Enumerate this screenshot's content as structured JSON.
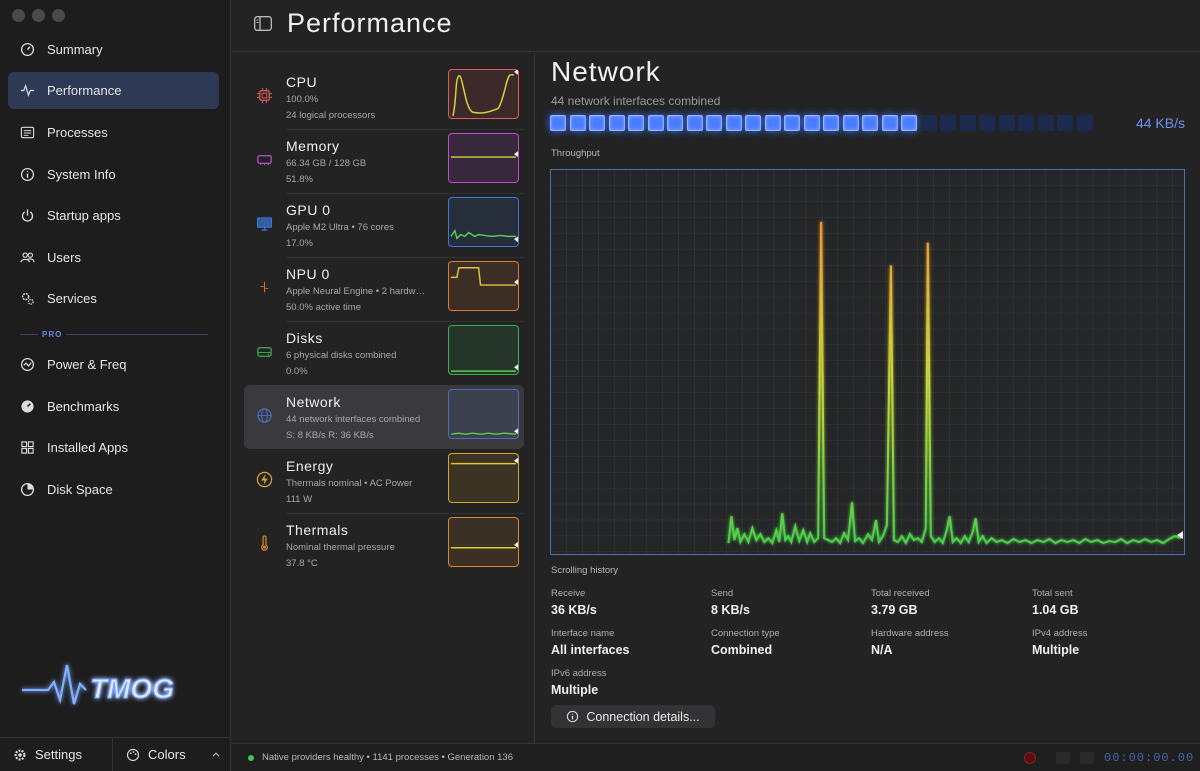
{
  "sidebar": {
    "items": [
      {
        "label": "Summary",
        "icon": "gauge-icon"
      },
      {
        "label": "Performance",
        "icon": "pulse-icon",
        "active": true
      },
      {
        "label": "Processes",
        "icon": "list-icon"
      },
      {
        "label": "System Info",
        "icon": "info-icon"
      },
      {
        "label": "Startup apps",
        "icon": "power-icon"
      },
      {
        "label": "Users",
        "icon": "users-icon"
      },
      {
        "label": "Services",
        "icon": "gears-icon"
      }
    ],
    "pro_label": "PRO",
    "pro_items": [
      {
        "label": "Power & Freq",
        "icon": "bolt-circle-icon"
      },
      {
        "label": "Benchmarks",
        "icon": "speedometer-icon"
      },
      {
        "label": "Installed Apps",
        "icon": "grid-icon"
      },
      {
        "label": "Disk Space",
        "icon": "pie-icon"
      }
    ],
    "logo_text": "TMOG",
    "settings_label": "Settings",
    "colors_label": "Colors"
  },
  "header": {
    "title": "Performance"
  },
  "perf_list": [
    {
      "title": "CPU",
      "sub1": "100.0%",
      "sub2": "24 logical processors",
      "color": "#e05a5a",
      "icon": "cpu-icon"
    },
    {
      "title": "Memory",
      "sub1": "66.34 GB / 128 GB",
      "sub2": "51.8%",
      "color": "#c04ad0",
      "icon": "memory-icon"
    },
    {
      "title": "GPU 0",
      "sub1": "Apple M2 Ultra • 76 cores",
      "sub2": "17.0%",
      "color": "#3c78d8",
      "icon": "monitor-icon"
    },
    {
      "title": "NPU 0",
      "sub1": "Apple Neural Engine • 2 hardw…",
      "sub2": "50.0% active time",
      "color": "#e07a2a",
      "icon": "brain-icon"
    },
    {
      "title": "Disks",
      "sub1": "6 physical disks combined",
      "sub2": "0.0%",
      "color": "#3fae4f",
      "icon": "disk-icon"
    },
    {
      "title": "Network",
      "sub1": "44 network interfaces combined",
      "sub2": "S: 8 KB/s  R: 36 KB/s",
      "color": "#4a6fc0",
      "icon": "globe-icon",
      "active": true
    },
    {
      "title": "Energy",
      "sub1": "Thermals nominal • AC Power",
      "sub2": "111 W",
      "color": "#d8a62a",
      "icon": "lightning-icon"
    },
    {
      "title": "Thermals",
      "sub1": "Nominal thermal pressure",
      "sub2": "37.8 °C",
      "color": "#d88a2a",
      "icon": "thermometer-icon"
    }
  ],
  "detail": {
    "title": "Network",
    "subtitle": "44 network interfaces combined",
    "meter_value": "44 KB/s",
    "meter_level": 0.67,
    "throughput_label": "Throughput",
    "history_label": "Scrolling history",
    "stats": [
      {
        "label": "Receive",
        "value": "36 KB/s"
      },
      {
        "label": "Send",
        "value": "8 KB/s"
      },
      {
        "label": "Total received",
        "value": "3.79 GB"
      },
      {
        "label": "Total sent",
        "value": "1.04 GB"
      },
      {
        "label": "Interface name",
        "value": "All interfaces"
      },
      {
        "label": "Connection type",
        "value": "Combined"
      },
      {
        "label": "Hardware address",
        "value": "N/A"
      },
      {
        "label": "IPv4 address",
        "value": "Multiple"
      },
      {
        "label": "IPv6 address",
        "value": "Multiple"
      }
    ],
    "connection_button": "Connection details..."
  },
  "status": {
    "text": "Native providers healthy • 1141 processes • Generation 136",
    "timer": "00:00:00.00"
  },
  "colors": {
    "accent": "#4a7dff",
    "active_nav": "#2e3a55",
    "healthy": "#3fc35a"
  }
}
